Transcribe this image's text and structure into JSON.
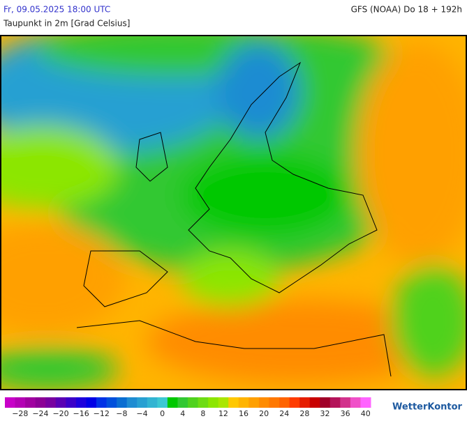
{
  "header": {
    "date": "Fr, 09.05.2025 18:00 UTC",
    "model": "GFS (NOAA) Do 18 + 192h",
    "subtitle": "Taupunkt in 2m [Grad Celsius]"
  },
  "legend": {
    "labels": [
      "−28",
      "−24",
      "−20",
      "−16",
      "−12",
      "−8",
      "−4",
      "0",
      "4",
      "8",
      "12",
      "16",
      "20",
      "24",
      "28",
      "32",
      "36",
      "40"
    ],
    "colors": [
      "#c800c8",
      "#b400b4",
      "#a000a0",
      "#8c0096",
      "#7800a0",
      "#5a00b4",
      "#3c00c8",
      "#1e00dc",
      "#0000e6",
      "#0032e6",
      "#0050dc",
      "#0a6ed2",
      "#1e8cd2",
      "#28a0d2",
      "#32b4d2",
      "#3cc8d2",
      "#00c800",
      "#32c832",
      "#50d21e",
      "#6edc14",
      "#8ce600",
      "#aae600",
      "#ffc800",
      "#ffb400",
      "#ffa000",
      "#ff8c00",
      "#ff7800",
      "#ff6400",
      "#ff3c00",
      "#e61e00",
      "#c80000",
      "#a00028",
      "#b4145a",
      "#d2328c",
      "#f050c8",
      "#ff64ff"
    ]
  },
  "logo": "WetterKontor"
}
